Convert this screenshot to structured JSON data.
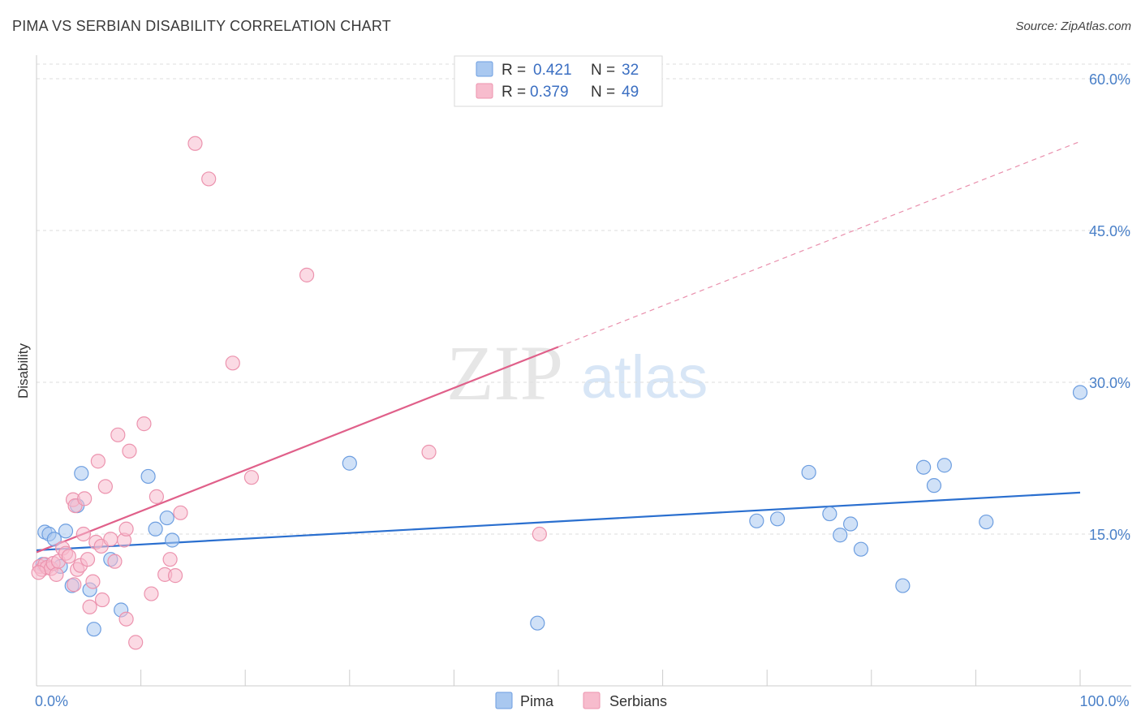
{
  "title": "PIMA VS SERBIAN DISABILITY CORRELATION CHART",
  "source": "Source: ZipAtlas.com",
  "watermark": {
    "zip": "ZIP",
    "atlas": "atlas"
  },
  "colors": {
    "pima_fill": "#a9c8f0",
    "pima_stroke": "#6d9ee0",
    "pima_line": "#2a6fcf",
    "serbian_fill": "#f7bccd",
    "serbian_stroke": "#ec93ae",
    "serbian_line": "#e0608a",
    "tick_text": "#4a80c8",
    "grid": "#dddddd"
  },
  "legend": {
    "rows": [
      {
        "r_label": "R =",
        "r_value": "0.421",
        "n_label": "N =",
        "n_value": "32",
        "series": "pima"
      },
      {
        "r_label": "R =",
        "r_value": "0.379",
        "n_label": "N =",
        "n_value": "49",
        "series": "serbian"
      }
    ]
  },
  "chart_data": {
    "type": "scatter",
    "title": "PIMA VS SERBIAN DISABILITY CORRELATION CHART",
    "xlabel": "",
    "ylabel": "Disability",
    "xlim": [
      0,
      100
    ],
    "ylim": [
      0,
      61
    ],
    "x_ticks": [
      0,
      10,
      20,
      30,
      40,
      50,
      60,
      70,
      80,
      90,
      100
    ],
    "x_tick_labels": [
      {
        "value": 0,
        "label": "0.0%"
      },
      {
        "value": 100,
        "label": "100.0%"
      }
    ],
    "y_ticks": [
      {
        "value": 15,
        "label": "15.0%"
      },
      {
        "value": 30,
        "label": "30.0%"
      },
      {
        "value": 45,
        "label": "45.0%"
      },
      {
        "value": 60,
        "label": "60.0%"
      }
    ],
    "grid": true,
    "legend_position": "bottom-center",
    "series": [
      {
        "name": "Pima",
        "key": "pima",
        "points": [
          [
            0.8,
            15.2
          ],
          [
            1.2,
            15.0
          ],
          [
            1.7,
            14.5
          ],
          [
            2.8,
            15.3
          ],
          [
            3.9,
            17.8
          ],
          [
            4.3,
            21.0
          ],
          [
            2.3,
            11.8
          ],
          [
            0.6,
            12.0
          ],
          [
            5.1,
            9.5
          ],
          [
            3.4,
            9.9
          ],
          [
            5.5,
            5.6
          ],
          [
            7.1,
            12.5
          ],
          [
            8.1,
            7.5
          ],
          [
            10.7,
            20.7
          ],
          [
            11.4,
            15.5
          ],
          [
            12.5,
            16.6
          ],
          [
            13.0,
            14.4
          ],
          [
            30.0,
            22.0
          ],
          [
            48.0,
            6.2
          ],
          [
            69.0,
            16.3
          ],
          [
            71.0,
            16.5
          ],
          [
            74.0,
            21.1
          ],
          [
            76.0,
            17.0
          ],
          [
            77.0,
            14.9
          ],
          [
            78.0,
            16.0
          ],
          [
            79.0,
            13.5
          ],
          [
            83.0,
            9.9
          ],
          [
            85.0,
            21.6
          ],
          [
            86.0,
            19.8
          ],
          [
            87.0,
            21.8
          ],
          [
            91.0,
            16.2
          ],
          [
            100.0,
            29.0
          ]
        ],
        "trend": {
          "x0": 0,
          "y0": 13.4,
          "x1": 100,
          "y1": 19.1,
          "dashed_from": null
        }
      },
      {
        "name": "Serbians",
        "key": "serbian",
        "points": [
          [
            0.3,
            11.8
          ],
          [
            0.5,
            11.5
          ],
          [
            0.8,
            12.0
          ],
          [
            1.0,
            11.7
          ],
          [
            1.4,
            11.6
          ],
          [
            1.6,
            12.1
          ],
          [
            1.9,
            11.0
          ],
          [
            2.1,
            12.3
          ],
          [
            2.5,
            13.6
          ],
          [
            2.8,
            13.1
          ],
          [
            3.1,
            12.8
          ],
          [
            3.5,
            18.4
          ],
          [
            3.7,
            17.8
          ],
          [
            3.6,
            10.0
          ],
          [
            3.9,
            11.5
          ],
          [
            4.2,
            11.9
          ],
          [
            4.5,
            15.0
          ],
          [
            4.6,
            18.5
          ],
          [
            4.9,
            12.5
          ],
          [
            5.1,
            7.8
          ],
          [
            5.4,
            10.3
          ],
          [
            5.7,
            14.2
          ],
          [
            5.9,
            22.2
          ],
          [
            6.2,
            13.8
          ],
          [
            6.3,
            8.5
          ],
          [
            6.6,
            19.7
          ],
          [
            7.1,
            14.5
          ],
          [
            7.5,
            12.3
          ],
          [
            7.8,
            24.8
          ],
          [
            8.4,
            14.4
          ],
          [
            8.6,
            15.5
          ],
          [
            8.6,
            6.6
          ],
          [
            8.9,
            23.2
          ],
          [
            9.5,
            4.3
          ],
          [
            10.3,
            25.9
          ],
          [
            11.0,
            9.1
          ],
          [
            11.5,
            18.7
          ],
          [
            12.3,
            11.0
          ],
          [
            12.8,
            12.5
          ],
          [
            13.3,
            10.9
          ],
          [
            13.8,
            17.1
          ],
          [
            15.2,
            53.6
          ],
          [
            16.5,
            50.1
          ],
          [
            18.8,
            31.9
          ],
          [
            20.6,
            20.6
          ],
          [
            25.9,
            40.6
          ],
          [
            37.6,
            23.1
          ],
          [
            48.2,
            15.0
          ],
          [
            0.2,
            11.2
          ]
        ],
        "trend": {
          "x0": 0,
          "y0": 13.2,
          "x1": 100,
          "y1": 53.8,
          "dashed_from": 50
        }
      }
    ]
  },
  "bottom_legend": [
    {
      "label": "Pima",
      "series": "pima"
    },
    {
      "label": "Serbians",
      "series": "serbian"
    }
  ]
}
